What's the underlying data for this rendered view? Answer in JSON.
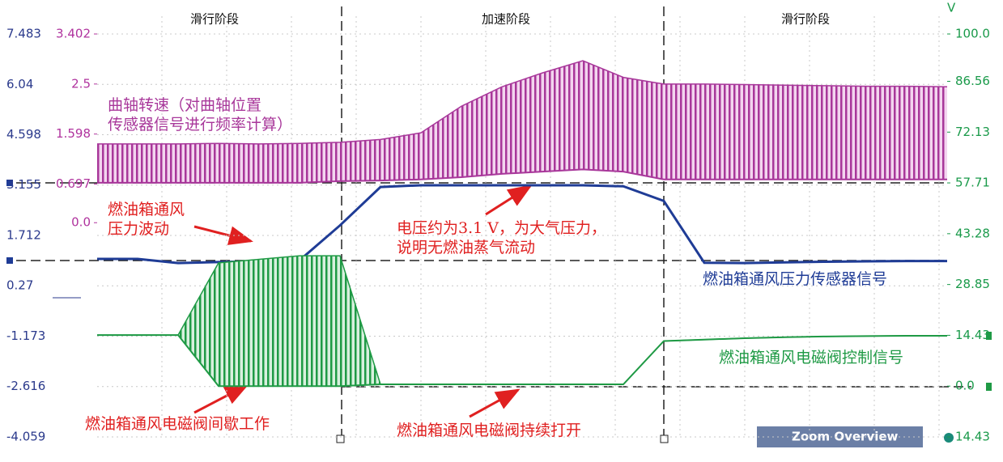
{
  "chart_data": {
    "type": "line",
    "unit_label": "V",
    "phases": [
      "滑行阶段",
      "加速阶段",
      "滑行阶段"
    ],
    "axes": [
      {
        "lim": [
          -4.059,
          7.483
        ],
        "ticks": [
          7.483,
          6.04,
          4.598,
          3.155,
          1.712,
          0.27,
          -1.173,
          -2.616,
          -4.059
        ],
        "color": "#2b3a8c"
      },
      {
        "lim": [
          -3.862,
          3.402
        ],
        "ticks": [
          3.402,
          2.5,
          1.598,
          0.697,
          {
            "value": 0,
            "label": "0.0"
          }
        ],
        "color": "#b0339e"
      },
      {
        "lim": [
          -14.43,
          100.0
        ],
        "ticks": [
          {
            "value": 100,
            "label": "100.0"
          },
          86.56,
          72.13,
          57.71,
          43.28,
          28.85,
          14.43,
          {
            "value": 0,
            "label": "0.0"
          },
          {
            "value": -14.43,
            "label": "14.43"
          }
        ],
        "color": "#1a9a4a"
      }
    ],
    "grid": true,
    "series": [
      {
        "name": "曲轴转速（对曲轴位置\n传感器信号进行频率计算）",
        "color": "#a8379a",
        "axis": 1,
        "values": [
          1.42,
          1.42,
          1.42,
          1.43,
          1.42,
          1.43,
          1.45,
          1.5,
          1.62,
          2.1,
          2.45,
          2.7,
          2.92,
          2.62,
          2.5,
          2.5,
          2.49,
          2.48,
          2.47,
          2.46,
          2.46,
          2.45
        ],
        "lows": [
          0.72,
          0.72,
          0.72,
          0.72,
          0.72,
          0.72,
          0.75,
          0.76,
          0.78,
          0.82,
          0.88,
          0.92,
          0.96,
          0.92,
          0.78,
          0.78,
          0.78,
          0.78,
          0.78,
          0.78,
          0.78,
          0.78
        ]
      },
      {
        "name": "燃油箱通风压力传感器信号",
        "color": "#1f3c96",
        "axis": 0,
        "values": [
          1.04,
          1.04,
          0.92,
          0.95,
          0.97,
          1.0,
          2.0,
          3.1,
          3.15,
          3.15,
          3.15,
          3.15,
          3.15,
          3.12,
          2.7,
          0.93,
          0.92,
          0.94,
          0.96,
          0.97,
          0.98,
          0.98
        ]
      },
      {
        "name": "燃油箱通风电磁阀控制信号",
        "color": "#1f9a45",
        "axis": 2,
        "values": [
          14.5,
          14.5,
          14.5,
          35,
          36,
          37,
          37,
          0.5,
          0.5,
          0.5,
          0.5,
          0.5,
          0.5,
          0.5,
          12.8,
          13.2,
          13.6,
          13.9,
          14.1,
          14.2,
          14.3,
          14.3
        ],
        "lows": [
          14.5,
          14.5,
          14.5,
          0,
          0,
          0,
          0,
          0.5,
          0.5,
          0.5,
          0.5,
          0.5,
          0.5,
          0.5,
          12.8,
          13.2,
          13.6,
          13.9,
          14.1,
          14.2,
          14.3,
          14.3
        ]
      }
    ],
    "annotations": [
      "燃油箱通风\n压力波动",
      "电压约为3.1 V，为大气压力，\n说明无燃油蒸气流动",
      "燃油箱通风电磁阀间歇工作",
      "燃油箱通风电磁阀持续打开"
    ],
    "widget": "Zoom Overview"
  }
}
